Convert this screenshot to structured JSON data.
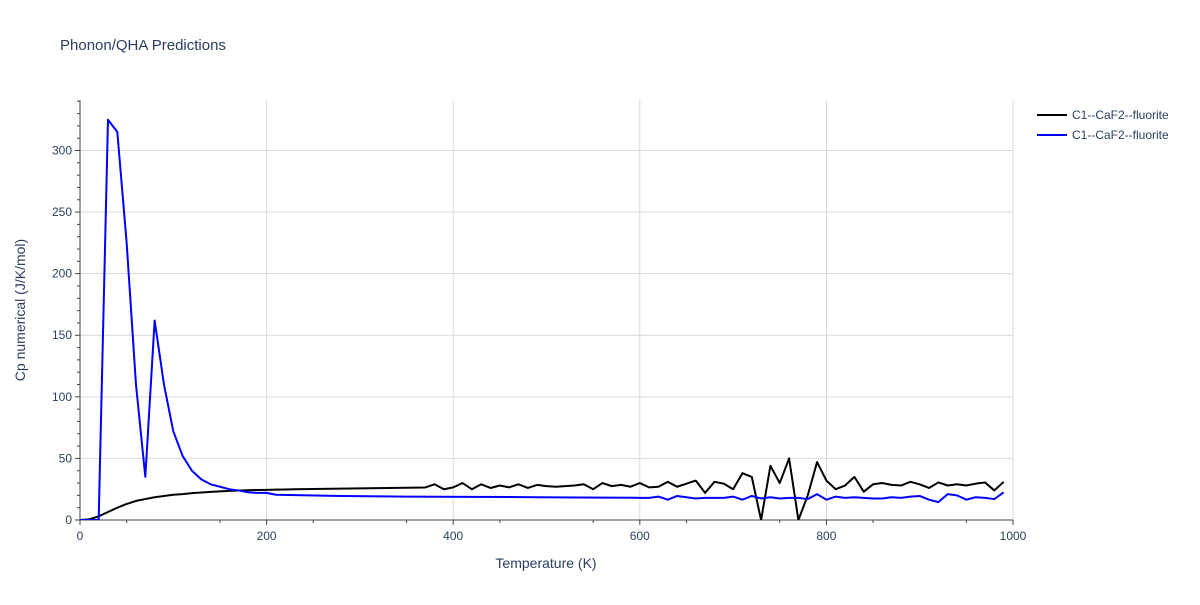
{
  "chart_data": {
    "type": "line",
    "title": "Phonon/QHA Predictions",
    "xlabel": "Temperature (K)",
    "ylabel": "Cp numerical (J/K/mol)",
    "xlim": [
      0,
      1000
    ],
    "ylim": [
      0,
      341
    ],
    "xticks": [
      0,
      200,
      400,
      600,
      800,
      1000
    ],
    "yticks": [
      0,
      50,
      100,
      150,
      200,
      250,
      300
    ],
    "grid": true,
    "legend_position": "top-right",
    "series": [
      {
        "name": "C1--CaF2--fluorite",
        "color": "#000000",
        "x": [
          0,
          10,
          20,
          30,
          40,
          50,
          60,
          70,
          80,
          90,
          100,
          110,
          120,
          130,
          140,
          150,
          160,
          170,
          180,
          190,
          200,
          210,
          220,
          230,
          240,
          250,
          260,
          270,
          280,
          290,
          300,
          310,
          320,
          330,
          340,
          350,
          360,
          370,
          380,
          390,
          400,
          410,
          420,
          430,
          440,
          450,
          460,
          470,
          480,
          490,
          500,
          510,
          520,
          530,
          540,
          550,
          560,
          570,
          580,
          590,
          600,
          610,
          620,
          630,
          640,
          650,
          660,
          670,
          680,
          690,
          700,
          710,
          720,
          730,
          740,
          750,
          760,
          770,
          780,
          790,
          800,
          810,
          820,
          830,
          840,
          850,
          860,
          870,
          880,
          890,
          900,
          910,
          920,
          930,
          940,
          950,
          960,
          970,
          980,
          990
        ],
        "y": [
          0,
          0.5,
          3,
          6.5,
          10,
          13,
          15.5,
          17,
          18.5,
          19.5,
          20.5,
          21,
          21.8,
          22.3,
          22.8,
          23.2,
          23.6,
          23.9,
          24.2,
          24.4,
          24.5,
          24.7,
          24.8,
          25,
          25.1,
          25.2,
          25.3,
          25.4,
          25.5,
          25.6,
          25.7,
          25.8,
          25.9,
          26,
          26.1,
          26.2,
          26.3,
          26.4,
          29,
          25,
          26.5,
          30,
          25,
          29,
          26,
          28,
          26.5,
          29,
          26,
          28.5,
          27.5,
          27,
          27.5,
          28,
          29,
          25,
          30,
          27.5,
          28.5,
          27,
          30,
          26.5,
          27,
          31,
          27,
          29.5,
          32,
          22,
          31,
          29.5,
          25,
          38,
          35,
          0,
          44,
          30,
          50,
          0,
          20,
          47,
          32,
          25,
          28,
          35,
          23,
          29,
          30,
          28.5,
          28,
          31,
          29,
          26,
          30.5,
          28,
          29,
          28,
          29.5,
          30.5,
          24,
          31
        ]
      },
      {
        "name": "C1--CaF2--fluorite",
        "color": "#0000ff",
        "x": [
          0,
          10,
          20,
          30,
          40,
          50,
          60,
          70,
          80,
          90,
          100,
          110,
          120,
          130,
          140,
          150,
          160,
          170,
          180,
          190,
          200,
          210,
          280,
          350,
          420,
          490,
          560,
          600,
          610,
          620,
          630,
          640,
          650,
          660,
          670,
          680,
          690,
          700,
          710,
          720,
          730,
          740,
          750,
          760,
          770,
          780,
          790,
          800,
          810,
          820,
          830,
          840,
          850,
          860,
          870,
          880,
          890,
          900,
          910,
          920,
          930,
          940,
          950,
          960,
          970,
          980,
          990
        ],
        "y": [
          0,
          0,
          0,
          325,
          315,
          225,
          110,
          35,
          162,
          110,
          72,
          52,
          40,
          33,
          29,
          27,
          25,
          24,
          22.5,
          22,
          22,
          20.5,
          19.5,
          19,
          18.8,
          18.5,
          18.2,
          18,
          18,
          19,
          16.5,
          19.5,
          18.5,
          17.5,
          18,
          18,
          18,
          19,
          16.5,
          19.5,
          17.5,
          18.5,
          17.5,
          18,
          18,
          17,
          21,
          16.5,
          19,
          18,
          18.5,
          18,
          17.5,
          17.5,
          18.5,
          18,
          19,
          19.5,
          16.5,
          14.5,
          21,
          20,
          16.5,
          18.5,
          18,
          17,
          22.5
        ]
      }
    ]
  }
}
